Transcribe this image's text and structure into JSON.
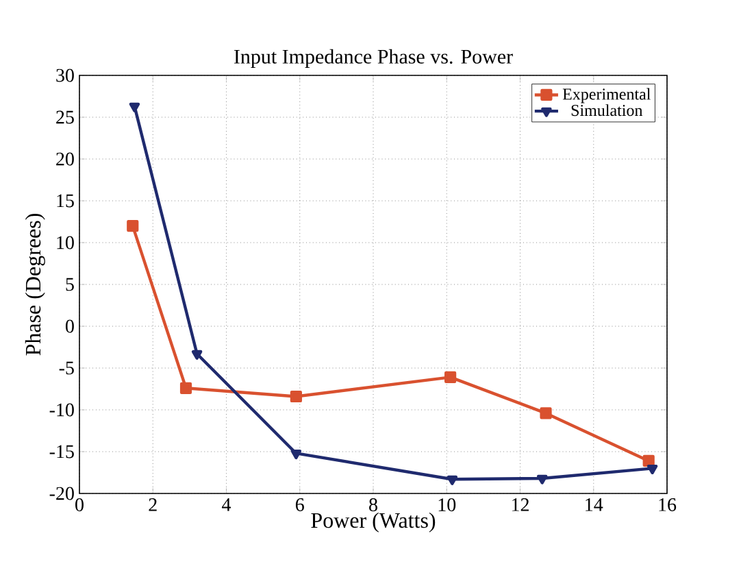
{
  "chart_data": {
    "type": "line",
    "title": "Input Impedance Phase vs. Power",
    "xlabel": "Power (Watts)",
    "ylabel": "Phase (Degrees)",
    "xlim": [
      0,
      16
    ],
    "ylim": [
      -20,
      30
    ],
    "xticks": [
      0,
      2,
      4,
      6,
      8,
      10,
      12,
      14,
      16
    ],
    "yticks": [
      -20,
      -15,
      -10,
      -5,
      0,
      5,
      10,
      15,
      20,
      25,
      30
    ],
    "grid": true,
    "legend": "top right",
    "line_style": "solid",
    "series": [
      {
        "name": "Experimental",
        "color": "#d9512f",
        "marker": "square",
        "x": [
          1.45,
          2.9,
          5.9,
          10.1,
          12.7,
          15.5
        ],
        "values": [
          12,
          -7.4,
          -8.4,
          -6.1,
          -10.4,
          -16.1
        ]
      },
      {
        "name": "Simulation",
        "color": "#1f2a6e",
        "marker": "triangle",
        "x": [
          1.5,
          3.2,
          5.9,
          10.15,
          12.6,
          15.6
        ],
        "values": [
          26.3,
          -3.3,
          -15.2,
          -18.3,
          -18.2,
          -17
        ]
      }
    ]
  }
}
